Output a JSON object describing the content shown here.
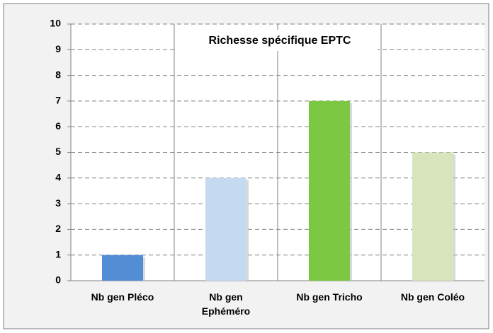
{
  "chart_data": {
    "type": "bar",
    "title": "Richesse spécifique EPTC",
    "categories": [
      "Nb gen Pléco",
      "Nb gen Ephéméro",
      "Nb gen Tricho",
      "Nb gen Coléo"
    ],
    "values": [
      1,
      4,
      7,
      5
    ],
    "colors": [
      "#538dd5",
      "#c5d9f1",
      "#7dc843",
      "#d8e4bc"
    ],
    "ylim": [
      0,
      10
    ],
    "yticks": [
      0,
      1,
      2,
      3,
      4,
      5,
      6,
      7,
      8,
      9,
      10
    ],
    "grid": true
  }
}
